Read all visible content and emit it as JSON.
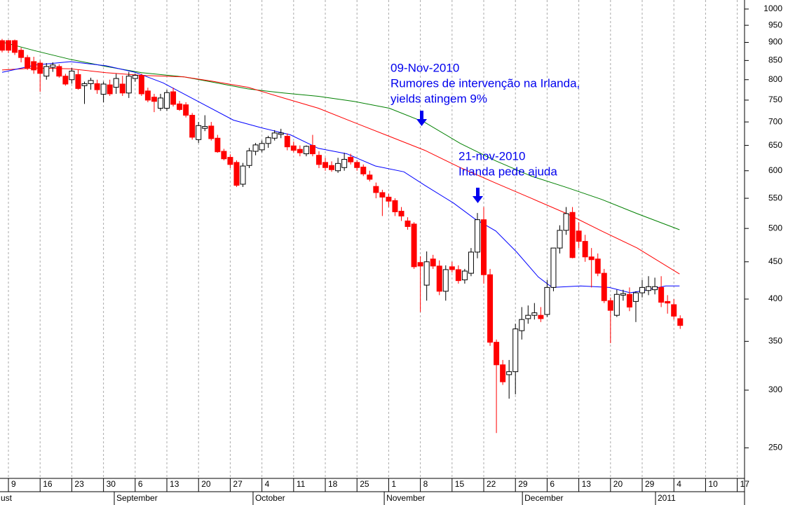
{
  "chart_data": {
    "type": "candlestick",
    "log_scale": true,
    "grid": true,
    "up_color": "#ffffff",
    "down_color": "#ff0000",
    "ylim": [
      227,
      1029
    ],
    "yticks": [
      1000,
      950,
      900,
      850,
      800,
      750,
      700,
      650,
      600,
      550,
      500,
      450,
      400,
      350,
      300,
      250
    ],
    "xlim": [
      -0.33,
      117.15
    ],
    "xticks": [
      {
        "value": 1,
        "label": "9"
      },
      {
        "value": 6,
        "label": "16"
      },
      {
        "value": 11,
        "label": "23"
      },
      {
        "value": 16,
        "label": "30"
      },
      {
        "value": 21,
        "label": "6"
      },
      {
        "value": 26,
        "label": "13"
      },
      {
        "value": 31,
        "label": "20"
      },
      {
        "value": 36,
        "label": "27"
      },
      {
        "value": 41,
        "label": "4"
      },
      {
        "value": 46,
        "label": "11"
      },
      {
        "value": 51,
        "label": "18"
      },
      {
        "value": 56,
        "label": "25"
      },
      {
        "value": 61,
        "label": "1"
      },
      {
        "value": 66,
        "label": "8"
      },
      {
        "value": 71,
        "label": "15"
      },
      {
        "value": 76,
        "label": "22"
      },
      {
        "value": 81,
        "label": "29"
      },
      {
        "value": 86,
        "label": "6"
      },
      {
        "value": 91,
        "label": "13"
      },
      {
        "value": 96,
        "label": "20"
      },
      {
        "value": 101,
        "label": "29"
      },
      {
        "value": 106,
        "label": "4"
      },
      {
        "value": 111,
        "label": "10"
      },
      {
        "value": 116,
        "label": "17"
      }
    ],
    "months": [
      {
        "value": -1.5,
        "label": "ust"
      },
      {
        "value": 17.7,
        "label": "September"
      },
      {
        "value": 39.6,
        "label": "October"
      },
      {
        "value": 60.3,
        "label": "November"
      },
      {
        "value": 82.1,
        "label": "December"
      },
      {
        "value": 103.1,
        "label": "2011"
      }
    ],
    "open": [
      905,
      905,
      905,
      878,
      858,
      847,
      843,
      809,
      832,
      834,
      809,
      800,
      813,
      785,
      790,
      790,
      764,
      787,
      781,
      789,
      767,
      803,
      811,
      772,
      757,
      731,
      731,
      770,
      741,
      739,
      715,
      662,
      686,
      691,
      665,
      638,
      626,
      616,
      575,
      610,
      638,
      641,
      654,
      665,
      673,
      669,
      649,
      642,
      633,
      650,
      630,
      616,
      610,
      600,
      606,
      626,
      616,
      607,
      592,
      571,
      560,
      552,
      546,
      528,
      512,
      507,
      449,
      418,
      454,
      444,
      410,
      443,
      439,
      425,
      434,
      464,
      514,
      432,
      349,
      325,
      315,
      318,
      362,
      376,
      380,
      380,
      381,
      415,
      470,
      497,
      526,
      496,
      480,
      457,
      454,
      434,
      398,
      380,
      405,
      406,
      397,
      408,
      411,
      412,
      415,
      397,
      393,
      376
    ],
    "high": [
      910,
      907,
      908,
      885,
      865,
      860,
      850,
      843,
      845,
      840,
      815,
      830,
      825,
      795,
      805,
      800,
      795,
      800,
      815,
      810,
      820,
      815,
      815,
      780,
      765,
      765,
      775,
      780,
      748,
      745,
      720,
      700,
      715,
      700,
      672,
      643,
      632,
      620,
      615,
      645,
      655,
      660,
      670,
      682,
      685,
      675,
      658,
      650,
      650,
      672,
      638,
      625,
      618,
      625,
      635,
      633,
      620,
      612,
      600,
      578,
      565,
      558,
      550,
      535,
      518,
      510,
      458,
      465,
      460,
      452,
      445,
      450,
      445,
      440,
      470,
      525,
      535,
      440,
      352,
      330,
      330,
      370,
      390,
      392,
      395,
      390,
      425,
      470,
      505,
      535,
      535,
      510,
      490,
      470,
      462,
      440,
      402,
      412,
      412,
      415,
      410,
      425,
      430,
      428,
      430,
      405,
      400,
      380
    ],
    "low": [
      872,
      870,
      865,
      845,
      825,
      815,
      770,
      800,
      820,
      805,
      785,
      790,
      775,
      741,
      775,
      765,
      745,
      760,
      765,
      760,
      755,
      795,
      760,
      745,
      722,
      725,
      725,
      735,
      725,
      710,
      662,
      655,
      680,
      660,
      635,
      620,
      605,
      570,
      570,
      605,
      630,
      636,
      645,
      660,
      665,
      640,
      636,
      628,
      628,
      628,
      605,
      600,
      598,
      596,
      600,
      612,
      600,
      590,
      580,
      550,
      520,
      535,
      520,
      512,
      498,
      440,
      384,
      398,
      440,
      405,
      398,
      435,
      420,
      420,
      430,
      455,
      420,
      345,
      262,
      305,
      292,
      296,
      352,
      370,
      375,
      372,
      378,
      410,
      462,
      490,
      455,
      470,
      450,
      415,
      430,
      395,
      348,
      378,
      398,
      385,
      372,
      402,
      405,
      406,
      390,
      382,
      375,
      364
    ],
    "close": [
      878,
      878,
      872,
      858,
      830,
      825,
      816,
      834,
      838,
      809,
      789,
      822,
      778,
      790,
      798,
      775,
      789,
      765,
      803,
      767,
      809,
      811,
      765,
      750,
      747,
      755,
      768,
      740,
      728,
      715,
      667,
      692,
      690,
      664,
      637,
      623,
      612,
      573,
      609,
      639,
      651,
      654,
      666,
      676,
      676,
      647,
      640,
      635,
      648,
      633,
      612,
      606,
      602,
      614,
      622,
      617,
      606,
      594,
      584,
      560,
      552,
      545,
      527,
      520,
      503,
      443,
      444,
      450,
      444,
      410,
      439,
      439,
      424,
      437,
      464,
      514,
      432,
      349,
      325,
      308,
      318,
      364,
      375,
      380,
      383,
      376,
      415,
      470,
      497,
      524,
      456,
      480,
      457,
      453,
      434,
      398,
      386,
      406,
      407,
      390,
      408,
      415,
      416,
      416,
      396,
      395,
      379,
      368
    ],
    "lines": [
      {
        "color": "#008000",
        "x": [
          0,
          5.3,
          10.8,
          16.4,
          22.0,
          28.7,
          33.2,
          38.8,
          44.4,
          49.9,
          55.5,
          61.1,
          66.7,
          72.3,
          77.9,
          83.5,
          89.1,
          94.6,
          100.2,
          106.9
        ],
        "values": [
          901,
          876,
          853,
          834,
          818,
          807,
          794,
          777,
          767,
          759,
          747,
          731,
          699,
          654,
          619,
          590,
          569,
          548,
          524,
          498
        ]
      },
      {
        "color": "#ff0000",
        "x": [
          0,
          5.3,
          10.8,
          16.4,
          22.0,
          28.7,
          33.2,
          38.8,
          44.4,
          49.9,
          55.5,
          61.1,
          66.7,
          72.3,
          77.9,
          83.5,
          89.1,
          94.6,
          100.2,
          106.9
        ],
        "values": [
          825,
          830,
          828,
          818,
          811,
          807,
          796,
          781,
          755,
          731,
          699,
          669,
          640,
          606,
          577,
          550,
          524,
          496,
          470,
          433
        ]
      },
      {
        "color": "#0000ff",
        "x": [
          0,
          5.3,
          10.8,
          16.4,
          21.0,
          25.4,
          30.9,
          36.5,
          41.0,
          45.5,
          49.9,
          54.4,
          58.9,
          63.4,
          66.7,
          71.2,
          74.5,
          77.9,
          81.2,
          84.6,
          86.8,
          91.3,
          95.8,
          99.1,
          101.3,
          104.7,
          106.9
        ],
        "values": [
          819,
          838,
          847,
          836,
          819,
          792,
          747,
          704,
          687,
          672,
          644,
          633,
          609,
          598,
          573,
          542,
          516,
          496,
          464,
          429,
          415,
          417,
          415,
          408,
          411,
          417,
          417
        ]
      }
    ],
    "annotations": [
      {
        "lines": [
          "09-Nov-2010",
          "Rumores de intervenção na Irlanda,",
          "yields atingem 9%"
        ]
      },
      {
        "lines": [
          "21-nov-2010",
          "Irlanda pede ajuda"
        ]
      }
    ]
  }
}
